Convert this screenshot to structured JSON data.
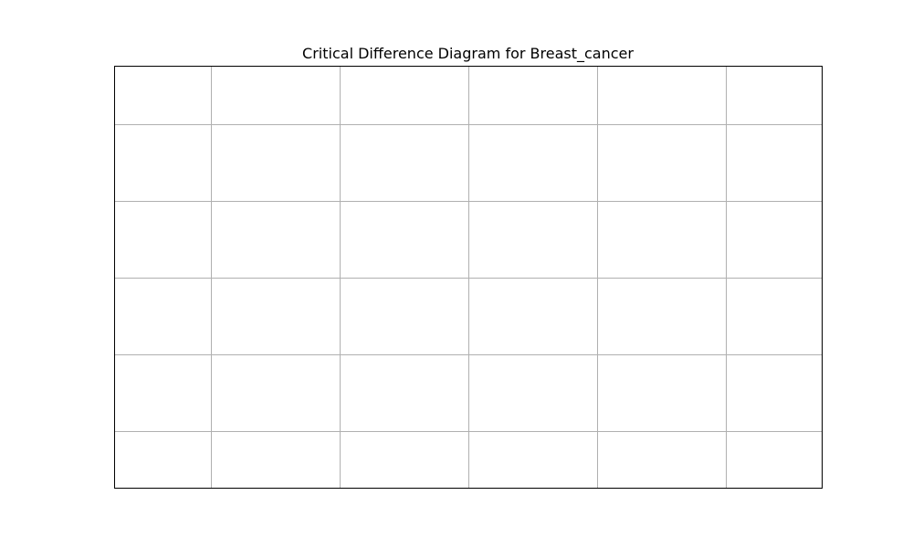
{
  "chart_data": {
    "type": "scatter",
    "title": "Critical Difference Diagram for Breast_cancer",
    "xlabel": "",
    "ylabel": "",
    "xlim": [
      0,
      5.5
    ],
    "ylim": [
      0,
      5.5
    ],
    "xgrid": [
      0.75,
      1.75,
      2.75,
      3.75,
      4.75
    ],
    "ygrid": [
      0.75,
      1.75,
      2.75,
      3.75,
      4.75
    ],
    "grid": true,
    "show_ticks": false,
    "series": [],
    "colors": {
      "grid": "#b0b0b0",
      "frame": "#000000",
      "background": "#ffffff"
    }
  }
}
